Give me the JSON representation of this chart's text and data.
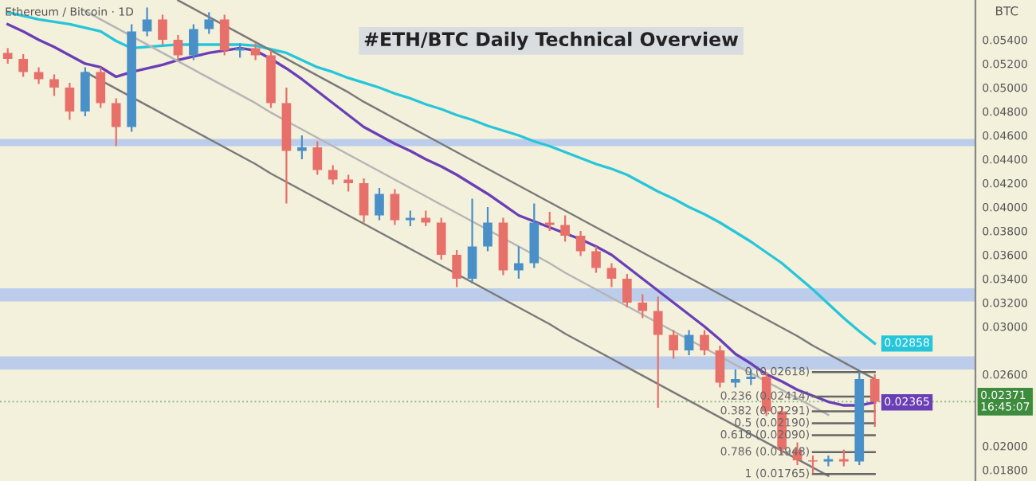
{
  "chart_data": {
    "type": "candlestick",
    "title": "#ETH/BTC Daily Technical Overview",
    "subtitle": "Ethereum / Bitcoin · 1D",
    "ylabel": "BTC",
    "categories": [
      null,
      null,
      null,
      null,
      null,
      null,
      null,
      null,
      null,
      null,
      null,
      null,
      null,
      null,
      null,
      null,
      null,
      null,
      null,
      null,
      null,
      null,
      null,
      null,
      null,
      null,
      null,
      null,
      null,
      null,
      null,
      null,
      null,
      null,
      null,
      null,
      null,
      null,
      null,
      null,
      null,
      null,
      null,
      null,
      null,
      null,
      null,
      null,
      null,
      null,
      null,
      null,
      null,
      null,
      null,
      null,
      null
    ],
    "ohlc": [
      [
        0.0529,
        0.0533,
        0.052,
        0.0524
      ],
      [
        0.0524,
        0.0528,
        0.0509,
        0.0513
      ],
      [
        0.0513,
        0.0517,
        0.0503,
        0.0507
      ],
      [
        0.0507,
        0.0511,
        0.0493,
        0.05
      ],
      [
        0.05,
        0.0504,
        0.0473,
        0.048
      ],
      [
        0.048,
        0.0517,
        0.0476,
        0.0513
      ],
      [
        0.0513,
        0.0517,
        0.0483,
        0.0487
      ],
      [
        0.0487,
        0.0491,
        0.0451,
        0.0467
      ],
      [
        0.0467,
        0.0553,
        0.0463,
        0.0547
      ],
      [
        0.0547,
        0.0567,
        0.0543,
        0.0557
      ],
      [
        0.0557,
        0.0561,
        0.0536,
        0.054
      ],
      [
        0.054,
        0.0544,
        0.0523,
        0.0527
      ],
      [
        0.0527,
        0.0553,
        0.0523,
        0.0549
      ],
      [
        0.0549,
        0.0563,
        0.0545,
        0.0557
      ],
      [
        0.0557,
        0.0561,
        0.0527,
        0.0531
      ],
      [
        0.0531,
        0.0537,
        0.0525,
        0.0533
      ],
      [
        0.0533,
        0.0537,
        0.0523,
        0.0527
      ],
      [
        0.0527,
        0.0531,
        0.0483,
        0.0487
      ],
      [
        0.0487,
        0.05,
        0.0403,
        0.0447
      ],
      [
        0.0447,
        0.046,
        0.044,
        0.045
      ],
      [
        0.045,
        0.0455,
        0.0427,
        0.0431
      ],
      [
        0.0431,
        0.0435,
        0.0419,
        0.0423
      ],
      [
        0.0423,
        0.0427,
        0.0413,
        0.042
      ],
      [
        0.042,
        0.0424,
        0.0387,
        0.0393
      ],
      [
        0.0393,
        0.0416,
        0.0389,
        0.0411
      ],
      [
        0.0411,
        0.0415,
        0.0385,
        0.0389
      ],
      [
        0.0389,
        0.0397,
        0.0384,
        0.0391
      ],
      [
        0.0391,
        0.0397,
        0.0384,
        0.0387
      ],
      [
        0.0387,
        0.0391,
        0.0356,
        0.036
      ],
      [
        0.036,
        0.0364,
        0.0333,
        0.034
      ],
      [
        0.034,
        0.0407,
        0.0336,
        0.0367
      ],
      [
        0.0367,
        0.04,
        0.0363,
        0.0387
      ],
      [
        0.0387,
        0.0391,
        0.0343,
        0.0347
      ],
      [
        0.0347,
        0.0367,
        0.034,
        0.0353
      ],
      [
        0.0353,
        0.0403,
        0.0349,
        0.0387
      ],
      [
        0.0387,
        0.0396,
        0.038,
        0.0385
      ],
      [
        0.0385,
        0.0393,
        0.0371,
        0.0376
      ],
      [
        0.0376,
        0.038,
        0.0359,
        0.0363
      ],
      [
        0.0363,
        0.0367,
        0.0345,
        0.0349
      ],
      [
        0.0349,
        0.0353,
        0.0333,
        0.034
      ],
      [
        0.034,
        0.0344,
        0.0316,
        0.032
      ],
      [
        0.032,
        0.0327,
        0.0307,
        0.0313
      ],
      [
        0.0313,
        0.0325,
        0.0232,
        0.0293
      ],
      [
        0.0293,
        0.0297,
        0.0273,
        0.028
      ],
      [
        0.028,
        0.0297,
        0.0276,
        0.0293
      ],
      [
        0.0293,
        0.0297,
        0.0276,
        0.028
      ],
      [
        0.028,
        0.0284,
        0.0249,
        0.0253
      ],
      [
        0.0253,
        0.0264,
        0.0249,
        0.0256
      ],
      [
        0.0256,
        0.0264,
        0.0251,
        0.0258
      ],
      [
        0.0258,
        0.0262,
        0.0225,
        0.0229
      ],
      [
        0.0229,
        0.0233,
        0.0193,
        0.0197
      ],
      [
        0.0197,
        0.0203,
        0.0184,
        0.0188
      ],
      [
        0.0188,
        0.0192,
        0.0177,
        0.0187
      ],
      [
        0.0187,
        0.0192,
        0.0183,
        0.0189
      ],
      [
        0.0189,
        0.0197,
        0.0183,
        0.0187
      ],
      [
        0.0187,
        0.0262,
        0.0184,
        0.0256
      ],
      [
        0.0256,
        0.026,
        0.0216,
        0.0237
      ]
    ],
    "colors": [
      "#e8706a",
      "#e8706a",
      "#e8706a",
      "#e8706a",
      "#e8706a",
      "#4a90c8",
      "#e8706a",
      "#e8706a",
      "#4a90c8",
      "#4a90c8",
      "#e8706a",
      "#e8706a",
      "#4a90c8",
      "#4a90c8",
      "#e8706a",
      "#4a90c8",
      "#e8706a",
      "#e8706a",
      "#e8706a",
      "#4a90c8",
      "#e8706a",
      "#e8706a",
      "#e8706a",
      "#e8706a",
      "#4a90c8",
      "#e8706a",
      "#4a90c8",
      "#e8706a",
      "#e8706a",
      "#e8706a",
      "#4a90c8",
      "#4a90c8",
      "#e8706a",
      "#4a90c8",
      "#4a90c8",
      "#e8706a",
      "#e8706a",
      "#e8706a",
      "#e8706a",
      "#e8706a",
      "#e8706a",
      "#e8706a",
      "#e8706a",
      "#e8706a",
      "#4a90c8",
      "#e8706a",
      "#e8706a",
      "#4a90c8",
      "#4a90c8",
      "#e8706a",
      "#e8706a",
      "#e8706a",
      "#e8706a",
      "#4a90c8",
      "#e8706a",
      "#4a90c8",
      "#e8706a"
    ],
    "series": [
      {
        "type": "line",
        "color": "#26c6da",
        "values": [
          0.0563,
          0.056,
          0.0557,
          0.0555,
          0.0553,
          0.055,
          0.0547,
          0.0539,
          0.0533,
          0.0534,
          0.0535,
          0.0536,
          0.0536,
          0.0536,
          0.0536,
          0.0536,
          0.0535,
          0.0532,
          0.0529,
          0.0523,
          0.0517,
          0.0513,
          0.0508,
          0.0504,
          0.05,
          0.0495,
          0.0491,
          0.0486,
          0.0482,
          0.0477,
          0.0473,
          0.0468,
          0.0464,
          0.046,
          0.0455,
          0.0451,
          0.0446,
          0.0441,
          0.0436,
          0.0432,
          0.0427,
          0.042,
          0.0413,
          0.0407,
          0.04,
          0.0394,
          0.0387,
          0.0379,
          0.0371,
          0.0362,
          0.0353,
          0.0342,
          0.0331,
          0.0319,
          0.0307,
          0.0296,
          0.02858
        ],
        "value_labels": [
          null,
          null,
          null,
          null,
          null,
          null,
          null,
          null,
          null,
          null,
          null,
          null,
          null,
          null,
          null,
          null,
          null,
          null,
          null,
          null,
          null,
          null,
          null,
          null,
          null,
          null,
          null,
          null,
          null,
          null,
          null,
          null,
          null,
          null,
          null,
          null,
          null,
          null,
          null,
          null,
          null,
          null,
          null,
          null,
          null,
          null,
          null,
          null,
          null,
          null,
          null,
          null,
          null,
          null,
          null,
          null,
          "0.02858"
        ]
      },
      {
        "type": "line",
        "color": "#6a3fb5",
        "values": [
          0.0553,
          0.0547,
          0.054,
          0.0534,
          0.0527,
          0.052,
          0.0517,
          0.0509,
          0.0513,
          0.0516,
          0.0519,
          0.0523,
          0.0526,
          0.0529,
          0.0531,
          0.0533,
          0.0531,
          0.0524,
          0.0516,
          0.0507,
          0.0497,
          0.0487,
          0.0477,
          0.0467,
          0.046,
          0.0453,
          0.0447,
          0.044,
          0.0434,
          0.0427,
          0.0419,
          0.0411,
          0.0402,
          0.0393,
          0.0388,
          0.0383,
          0.0378,
          0.0373,
          0.0367,
          0.036,
          0.035,
          0.034,
          0.033,
          0.032,
          0.031,
          0.03,
          0.0289,
          0.0277,
          0.0269,
          0.026,
          0.0254,
          0.0247,
          0.0242,
          0.0237,
          0.0234,
          0.0234,
          0.02365
        ],
        "value_labels": [
          null,
          null,
          null,
          null,
          null,
          null,
          null,
          null,
          null,
          null,
          null,
          null,
          null,
          null,
          null,
          null,
          null,
          null,
          null,
          null,
          null,
          null,
          null,
          null,
          null,
          null,
          null,
          null,
          null,
          null,
          null,
          null,
          null,
          null,
          null,
          null,
          null,
          null,
          null,
          null,
          null,
          null,
          null,
          null,
          null,
          null,
          null,
          null,
          null,
          null,
          null,
          null,
          null,
          null,
          null,
          null,
          "0.02365"
        ]
      },
      {
        "type": "line",
        "color": "#7a7a7a",
        "values": [
          null,
          null,
          null,
          null,
          null,
          null,
          null,
          null,
          null,
          null,
          null,
          0.0573,
          0.0566,
          0.0559,
          0.0552,
          0.0545,
          0.0538,
          0.0531,
          0.0524,
          0.0517,
          0.051,
          0.0503,
          0.0496,
          0.0488,
          0.0481,
          0.0474,
          0.0467,
          0.046,
          0.0453,
          0.0446,
          0.0439,
          0.0432,
          0.0425,
          0.0418,
          0.0411,
          0.0404,
          0.0397,
          0.039,
          0.0383,
          0.0376,
          0.0369,
          0.0362,
          0.0355,
          0.0348,
          0.0341,
          0.0334,
          0.0327,
          0.032,
          0.0313,
          0.0306,
          0.0299,
          0.0292,
          0.0284,
          0.0277,
          0.027,
          0.0263,
          0.0256
        ]
      },
      {
        "type": "line",
        "color": "#b5b5b5",
        "values": [
          null,
          null,
          null,
          null,
          null,
          0.0564,
          0.0557,
          0.055,
          0.0543,
          0.0536,
          0.0529,
          0.0522,
          0.0515,
          0.0508,
          0.0501,
          0.0494,
          0.0487,
          0.0479,
          0.0472,
          0.0465,
          0.0458,
          0.0451,
          0.0444,
          0.0437,
          0.043,
          0.0423,
          0.0416,
          0.0409,
          0.0402,
          0.0395,
          0.0388,
          0.0381,
          0.0374,
          0.0367,
          0.036,
          0.0353,
          0.0345,
          0.0338,
          0.0331,
          0.0324,
          0.0317,
          0.031,
          0.0303,
          0.0296,
          0.0289,
          0.0282,
          0.0275,
          0.0268,
          0.0261,
          0.0254,
          0.0247,
          0.024,
          0.0233,
          0.0226,
          null,
          null,
          null
        ]
      },
      {
        "type": "line",
        "color": "#7a7a7a",
        "values": [
          null,
          null,
          null,
          null,
          null,
          0.0513,
          0.0506,
          0.0499,
          0.0492,
          0.0485,
          0.0478,
          0.0471,
          0.0464,
          0.0457,
          0.045,
          0.0443,
          0.0436,
          0.0428,
          0.0421,
          0.0414,
          0.0407,
          0.04,
          0.0393,
          0.0386,
          0.0379,
          0.0372,
          0.0365,
          0.0358,
          0.0351,
          0.0344,
          0.0337,
          0.033,
          0.0323,
          0.0316,
          0.0309,
          0.0302,
          0.0294,
          0.0287,
          0.028,
          0.0273,
          0.0266,
          0.0259,
          0.0252,
          0.0245,
          0.0238,
          0.0231,
          0.0224,
          0.0217,
          0.021,
          0.0203,
          0.0196,
          0.0189,
          0.0182,
          0.0175,
          null,
          null,
          null
        ]
      },
      {
        "type": "line",
        "color": "#666666",
        "name": "0 (0.02618)",
        "values": [
          null,
          null,
          null,
          null,
          null,
          null,
          null,
          null,
          null,
          null,
          null,
          null,
          null,
          null,
          null,
          null,
          null,
          null,
          null,
          null,
          null,
          null,
          null,
          null,
          null,
          null,
          null,
          null,
          null,
          null,
          null,
          null,
          null,
          null,
          null,
          null,
          null,
          null,
          null,
          null,
          null,
          null,
          null,
          null,
          null,
          null,
          null,
          null,
          null,
          null,
          null,
          null,
          0.02618,
          0.02618,
          0.02618,
          0.02618,
          0.02618
        ]
      },
      {
        "type": "line",
        "color": "#666666",
        "name": "0.236 (0.02414)",
        "values": [
          null,
          null,
          null,
          null,
          null,
          null,
          null,
          null,
          null,
          null,
          null,
          null,
          null,
          null,
          null,
          null,
          null,
          null,
          null,
          null,
          null,
          null,
          null,
          null,
          null,
          null,
          null,
          null,
          null,
          null,
          null,
          null,
          null,
          null,
          null,
          null,
          null,
          null,
          null,
          null,
          null,
          null,
          null,
          null,
          null,
          null,
          null,
          null,
          null,
          null,
          null,
          null,
          0.02414,
          0.02414,
          0.02414,
          0.02414,
          0.02414
        ]
      },
      {
        "type": "line",
        "color": "#666666",
        "name": "0.382 (0.02291)",
        "values": [
          null,
          null,
          null,
          null,
          null,
          null,
          null,
          null,
          null,
          null,
          null,
          null,
          null,
          null,
          null,
          null,
          null,
          null,
          null,
          null,
          null,
          null,
          null,
          null,
          null,
          null,
          null,
          null,
          null,
          null,
          null,
          null,
          null,
          null,
          null,
          null,
          null,
          null,
          null,
          null,
          null,
          null,
          null,
          null,
          null,
          null,
          null,
          null,
          null,
          null,
          null,
          null,
          0.02291,
          0.02291,
          0.02291,
          0.02291,
          0.02291
        ]
      },
      {
        "type": "line",
        "color": "#666666",
        "name": "0.5 (0.02190)",
        "values": [
          null,
          null,
          null,
          null,
          null,
          null,
          null,
          null,
          null,
          null,
          null,
          null,
          null,
          null,
          null,
          null,
          null,
          null,
          null,
          null,
          null,
          null,
          null,
          null,
          null,
          null,
          null,
          null,
          null,
          null,
          null,
          null,
          null,
          null,
          null,
          null,
          null,
          null,
          null,
          null,
          null,
          null,
          null,
          null,
          null,
          null,
          null,
          null,
          null,
          null,
          null,
          null,
          0.0219,
          0.0219,
          0.0219,
          0.0219,
          0.0219
        ]
      },
      {
        "type": "line",
        "color": "#666666",
        "name": "0.618 (0.02090)",
        "values": [
          null,
          null,
          null,
          null,
          null,
          null,
          null,
          null,
          null,
          null,
          null,
          null,
          null,
          null,
          null,
          null,
          null,
          null,
          null,
          null,
          null,
          null,
          null,
          null,
          null,
          null,
          null,
          null,
          null,
          null,
          null,
          null,
          null,
          null,
          null,
          null,
          null,
          null,
          null,
          null,
          null,
          null,
          null,
          null,
          null,
          null,
          null,
          null,
          null,
          null,
          null,
          null,
          0.0209,
          0.0209,
          0.0209,
          0.0209,
          0.0209
        ]
      },
      {
        "type": "line",
        "color": "#666666",
        "name": "0.786 (0.01948)",
        "values": [
          null,
          null,
          null,
          null,
          null,
          null,
          null,
          null,
          null,
          null,
          null,
          null,
          null,
          null,
          null,
          null,
          null,
          null,
          null,
          null,
          null,
          null,
          null,
          null,
          null,
          null,
          null,
          null,
          null,
          null,
          null,
          null,
          null,
          null,
          null,
          null,
          null,
          null,
          null,
          null,
          null,
          null,
          null,
          null,
          null,
          null,
          null,
          null,
          null,
          null,
          null,
          null,
          0.01948,
          0.01948,
          0.01948,
          0.01948,
          0.01948
        ]
      },
      {
        "type": "line",
        "color": "#666666",
        "name": "1 (0.01765)",
        "values": [
          null,
          null,
          null,
          null,
          null,
          null,
          null,
          null,
          null,
          null,
          null,
          null,
          null,
          null,
          null,
          null,
          null,
          null,
          null,
          null,
          null,
          null,
          null,
          null,
          null,
          null,
          null,
          null,
          null,
          null,
          null,
          null,
          null,
          null,
          null,
          null,
          null,
          null,
          null,
          null,
          null,
          null,
          null,
          null,
          null,
          null,
          null,
          null,
          null,
          null,
          null,
          null,
          0.01765,
          0.01765,
          0.01765,
          0.01765,
          0.01765
        ]
      }
    ],
    "bands": [
      {
        "axis": "y",
        "from": 0.0451,
        "to": 0.0457,
        "color": "#aec4ef"
      },
      {
        "axis": "y",
        "from": 0.0321,
        "to": 0.0332,
        "color": "#aec4ef"
      },
      {
        "axis": "y",
        "from": 0.0264,
        "to": 0.0275,
        "color": "#aec4ef"
      }
    ],
    "ref_lines": [
      {
        "axis": "y",
        "value": 0.02371,
        "label": "0.02371\n16:45:07",
        "color": "#3d8b3d",
        "line_style": "dotted"
      }
    ],
    "ylim": [
      0.01707,
      0.05733
    ],
    "yticks": [
      {
        "value": 0.018,
        "label": "0.01800"
      },
      {
        "value": 0.02,
        "label": "0.02000"
      },
      {
        "value": 0.026,
        "label": "0.02600"
      },
      {
        "value": 0.03,
        "label": "0.03000"
      },
      {
        "value": 0.032,
        "label": "0.03200"
      },
      {
        "value": 0.034,
        "label": "0.03400"
      },
      {
        "value": 0.036,
        "label": "0.03600"
      },
      {
        "value": 0.038,
        "label": "0.03800"
      },
      {
        "value": 0.04,
        "label": "0.04000"
      },
      {
        "value": 0.042,
        "label": "0.04200"
      },
      {
        "value": 0.044,
        "label": "0.04400"
      },
      {
        "value": 0.046,
        "label": "0.04600"
      },
      {
        "value": 0.048,
        "label": "0.04800"
      },
      {
        "value": 0.05,
        "label": "0.05000"
      },
      {
        "value": 0.052,
        "label": "0.05200"
      },
      {
        "value": 0.054,
        "label": "0.05400"
      }
    ],
    "tick_labels": "y",
    "grid": false,
    "legend": false
  }
}
